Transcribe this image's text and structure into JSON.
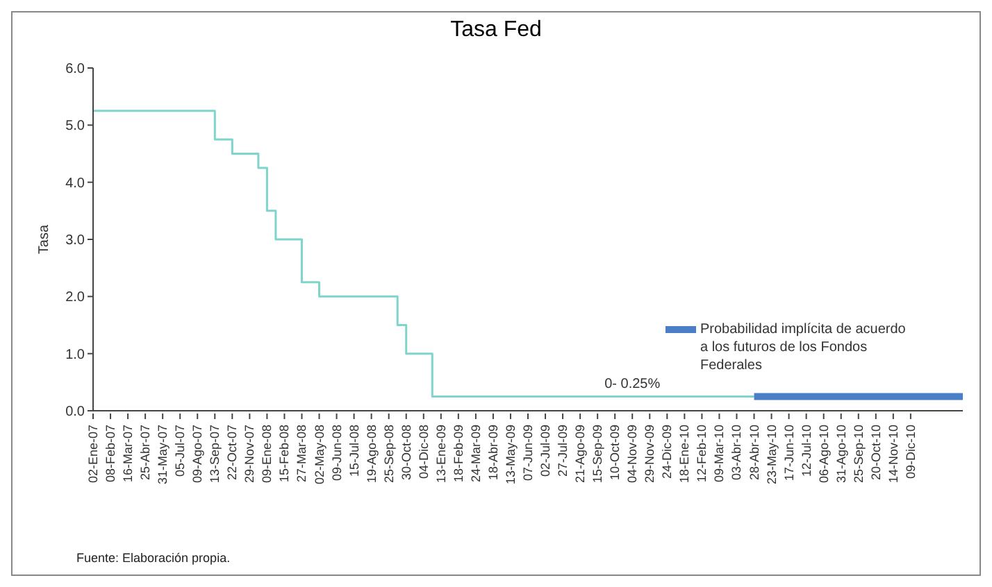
{
  "chart_data": {
    "type": "step",
    "title": "Tasa Fed",
    "ylabel": "Tasa",
    "categories": [
      "02-Ene-07",
      null,
      "08-Feb-07",
      null,
      "16-Mar-07",
      null,
      "25-Abr-07",
      null,
      "31-May-07",
      null,
      "05-Jul-07",
      null,
      "09-Ago-07",
      null,
      "13-Sep-07",
      null,
      "22-Oct-07",
      null,
      "29-Nov-07",
      null,
      "09-Ene-08",
      null,
      "15-Feb-08",
      null,
      "27-Mar-08",
      null,
      "02-May-08",
      null,
      "09-Jun-08",
      null,
      "15-Jul-08",
      null,
      "19-Ago-08",
      null,
      "25-Sep-08",
      null,
      "30-Oct-08",
      null,
      "04-Dic-08",
      null,
      "13-Ene-09",
      null,
      "18-Feb-09",
      null,
      "24-Mar-09",
      null,
      "18-Abr-09",
      null,
      "13-May-09",
      null,
      "07-Jun-09",
      null,
      "02-Jul-09",
      null,
      "27-Jul-09",
      null,
      "21-Ago-09",
      null,
      "15-Sep-09",
      null,
      "10-Oct-09",
      null,
      "04-Nov-09",
      null,
      "29-Nov-09",
      null,
      "24-Dic-09",
      null,
      "18-Ene-10",
      null,
      "12-Feb-10",
      null,
      "09-Mar-10",
      null,
      "03-Abr-10",
      null,
      "28-Abr-10",
      null,
      "23-May-10",
      null,
      "17-Jun-10",
      null,
      "12-Jul-10",
      null,
      "06-Ago-10",
      null,
      "31-Ago-10",
      null,
      "25-Sep-10",
      null,
      "20-Oct-10",
      null,
      "14-Nov-10",
      null,
      "09-Dic-10",
      null,
      null,
      null,
      null,
      null,
      null
    ],
    "ylim": [
      0,
      6
    ],
    "yticks": [
      {
        "value": 0,
        "label": "0.0"
      },
      {
        "value": 1,
        "label": "1.0"
      },
      {
        "value": 2,
        "label": "2.0"
      },
      {
        "value": 3,
        "label": "3.0"
      },
      {
        "value": 4,
        "label": "4.0"
      },
      {
        "value": 5,
        "label": "5.0"
      },
      {
        "value": 6,
        "label": "6.0"
      }
    ],
    "legend": "right",
    "marker": "none",
    "series": [
      {
        "color": "#7fd4cc",
        "values": [
          5.25,
          5.25,
          5.25,
          5.25,
          5.25,
          5.25,
          5.25,
          5.25,
          5.25,
          5.25,
          5.25,
          5.25,
          5.25,
          5.25,
          4.75,
          4.75,
          4.5,
          4.5,
          4.5,
          4.25,
          3.5,
          3.0,
          3.0,
          3.0,
          2.25,
          2.25,
          2.0,
          2.0,
          2.0,
          2.0,
          2.0,
          2.0,
          2.0,
          2.0,
          2.0,
          1.5,
          1.0,
          1.0,
          1.0,
          0.25,
          0.25,
          0.25,
          0.25,
          0.25,
          0.25,
          0.25,
          0.25,
          0.25,
          0.25,
          0.25,
          0.25,
          0.25,
          0.25,
          0.25,
          0.25,
          0.25,
          0.25,
          0.25,
          0.25,
          0.25,
          0.25,
          0.25,
          0.25,
          0.25,
          0.25,
          0.25,
          0.25,
          0.25,
          0.25,
          0.25,
          0.25,
          0.25,
          0.25,
          0.25,
          0.25,
          0.25,
          0.25,
          null,
          null,
          null,
          null,
          null,
          null,
          null,
          null,
          null,
          null,
          null,
          null,
          null,
          null,
          null,
          null,
          null,
          null,
          null,
          null,
          null,
          null,
          null,
          null
        ]
      },
      {
        "type": "line",
        "name": "Probabilidad implícita de acuerdo a los futuros de los Fondos Federales",
        "color": "#4a7fc8",
        "values": [
          null,
          null,
          null,
          null,
          null,
          null,
          null,
          null,
          null,
          null,
          null,
          null,
          null,
          null,
          null,
          null,
          null,
          null,
          null,
          null,
          null,
          null,
          null,
          null,
          null,
          null,
          null,
          null,
          null,
          null,
          null,
          null,
          null,
          null,
          null,
          null,
          null,
          null,
          null,
          null,
          null,
          null,
          null,
          null,
          null,
          null,
          null,
          null,
          null,
          null,
          null,
          null,
          null,
          null,
          null,
          null,
          null,
          null,
          null,
          null,
          null,
          null,
          null,
          null,
          null,
          null,
          null,
          null,
          null,
          null,
          null,
          null,
          null,
          null,
          null,
          null,
          0.25,
          0.25,
          0.25,
          0.25,
          0.25,
          0.25,
          0.25,
          0.25,
          0.25,
          0.25,
          0.25,
          0.25,
          0.25,
          0.25,
          0.25,
          0.25,
          0.25,
          0.25,
          0.25,
          0.25,
          0.25,
          0.25,
          0.25,
          0.25,
          0.25
        ]
      }
    ],
    "annotations": [
      {
        "text": "0- 0.25%",
        "x": "04-Nov-09",
        "y": 0.25
      },
      "Fuente: Elaboración propia."
    ]
  }
}
